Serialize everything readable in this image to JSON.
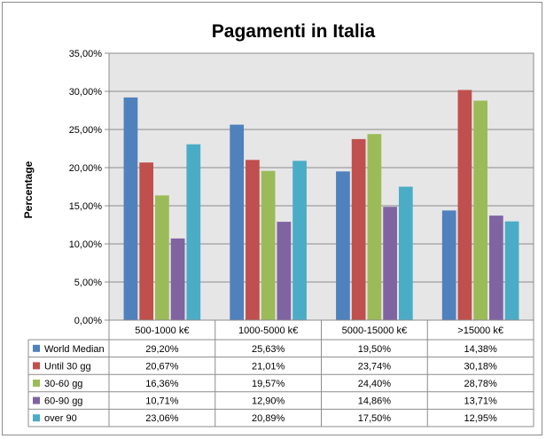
{
  "chart_data": {
    "type": "bar",
    "title": "Pagamenti in Italia",
    "ylabel": "Percentage",
    "xlabel": "",
    "ylim": [
      0,
      35
    ],
    "y_ticks": [
      "0,00%",
      "5,00%",
      "10,00%",
      "15,00%",
      "20,00%",
      "25,00%",
      "30,00%",
      "35,00%"
    ],
    "y_tick_values": [
      0,
      5,
      10,
      15,
      20,
      25,
      30,
      35
    ],
    "categories": [
      "500-1000 k€",
      "1000-5000 k€",
      "5000-15000 k€",
      ">15000 k€"
    ],
    "grid": true,
    "legend_placement": "bottom data table",
    "series": [
      {
        "name": "World Median",
        "color": "#4f81bd",
        "values": [
          29.2,
          25.63,
          19.5,
          14.38
        ],
        "labels": [
          "29,20%",
          "25,63%",
          "19,50%",
          "14,38%"
        ]
      },
      {
        "name": "Until 30 gg",
        "color": "#c0504d",
        "values": [
          20.67,
          21.01,
          23.74,
          30.18
        ],
        "labels": [
          "20,67%",
          "21,01%",
          "23,74%",
          "30,18%"
        ]
      },
      {
        "name": "30-60 gg",
        "color": "#9bbb59",
        "values": [
          16.36,
          19.57,
          24.4,
          28.78
        ],
        "labels": [
          "16,36%",
          "19,57%",
          "24,40%",
          "28,78%"
        ]
      },
      {
        "name": "60-90 gg",
        "color": "#8064a2",
        "values": [
          10.71,
          12.9,
          14.86,
          13.71
        ],
        "labels": [
          "10,71%",
          "12,90%",
          "14,86%",
          "13,71%"
        ]
      },
      {
        "name": "over 90",
        "color": "#4bacc6",
        "values": [
          23.06,
          20.89,
          17.5,
          12.95
        ],
        "labels": [
          "23,06%",
          "20,89%",
          "17,50%",
          "12,95%"
        ]
      }
    ]
  }
}
